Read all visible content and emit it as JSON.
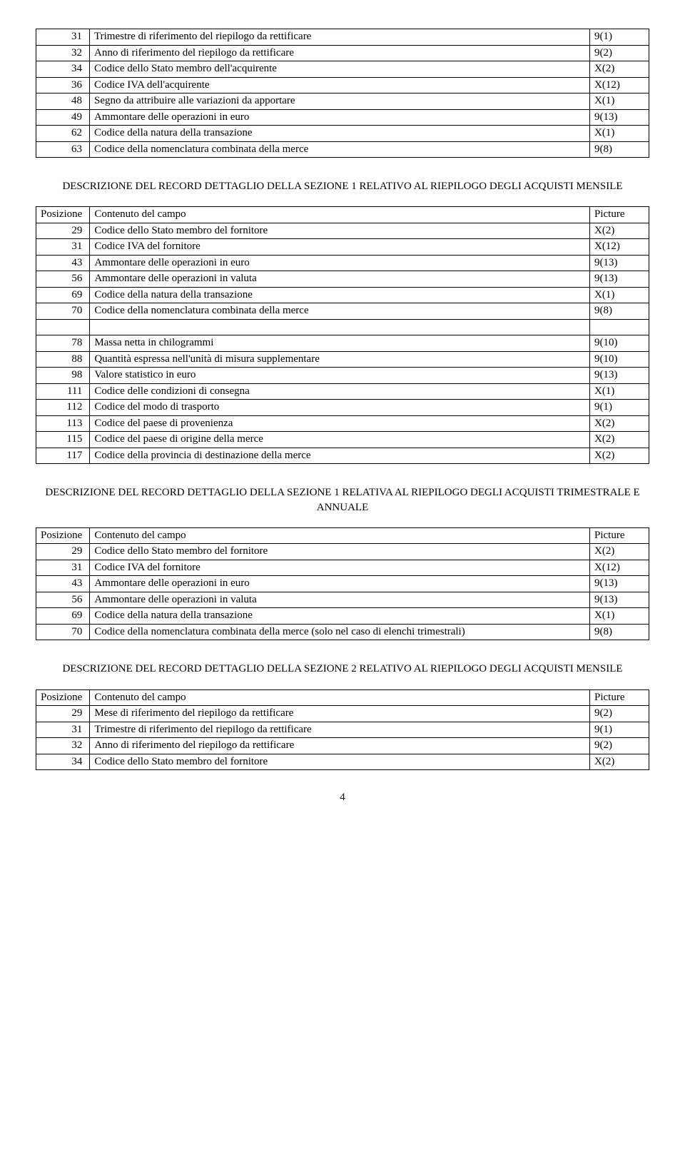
{
  "header_labels": {
    "pos": "Posizione",
    "desc": "Contenuto del campo",
    "pic": "Picture"
  },
  "table1_rows": [
    {
      "pos": "31",
      "desc": "Trimestre di riferimento del riepilogo da rettificare",
      "pic": "9(1)"
    },
    {
      "pos": "32",
      "desc": "Anno di riferimento del riepilogo da rettificare",
      "pic": "9(2)"
    },
    {
      "pos": "34",
      "desc": "Codice dello Stato membro dell'acquirente",
      "pic": "X(2)"
    },
    {
      "pos": "36",
      "desc": "Codice IVA dell'acquirente",
      "pic": "X(12)"
    },
    {
      "pos": "48",
      "desc": "Segno da attribuire alle variazioni da apportare",
      "pic": "X(1)"
    },
    {
      "pos": "49",
      "desc": "Ammontare delle operazioni in euro",
      "pic": "9(13)"
    },
    {
      "pos": "62",
      "desc": "Codice della natura della transazione",
      "pic": "X(1)"
    },
    {
      "pos": "63",
      "desc": "Codice della nomenclatura combinata della merce",
      "pic": "9(8)"
    }
  ],
  "title2": "DESCRIZIONE DEL RECORD DETTAGLIO DELLA SEZIONE 1 RELATIVO AL RIEPILOGO DEGLI ACQUISTI MENSILE",
  "table2_rows": [
    {
      "pos": "29",
      "desc": "Codice dello Stato membro del fornitore",
      "pic": "X(2)"
    },
    {
      "pos": "31",
      "desc": "Codice IVA del fornitore",
      "pic": "X(12)"
    },
    {
      "pos": "43",
      "desc": "Ammontare delle operazioni in euro",
      "pic": "9(13)"
    },
    {
      "pos": "56",
      "desc": "Ammontare delle operazioni in valuta",
      "pic": "9(13)"
    },
    {
      "pos": "69",
      "desc": "Codice della natura della transazione",
      "pic": "X(1)"
    },
    {
      "pos": "70",
      "desc": "Codice della nomenclatura combinata della merce",
      "pic": "9(8)"
    },
    {
      "pos": "",
      "desc": "",
      "pic": ""
    },
    {
      "pos": "78",
      "desc": "Massa netta in chilogrammi",
      "pic": "9(10)"
    },
    {
      "pos": "88",
      "desc": "Quantità espressa nell'unità di misura supplementare",
      "pic": "9(10)"
    },
    {
      "pos": "98",
      "desc": "Valore statistico in euro",
      "pic": "9(13)"
    },
    {
      "pos": "111",
      "desc": "Codice delle condizioni di consegna",
      "pic": "X(1)"
    },
    {
      "pos": "112",
      "desc": "Codice del modo di trasporto",
      "pic": "9(1)"
    },
    {
      "pos": "113",
      "desc": "Codice del paese di provenienza",
      "pic": "X(2)"
    },
    {
      "pos": "115",
      "desc": "Codice del paese di origine della merce",
      "pic": "X(2)"
    },
    {
      "pos": "117",
      "desc": "Codice della provincia di destinazione della merce",
      "pic": "X(2)"
    }
  ],
  "title3": "DESCRIZIONE DEL RECORD DETTAGLIO DELLA SEZIONE 1 RELATIVA AL RIEPILOGO DEGLI ACQUISTI TRIMESTRALE E ANNUALE",
  "table3_rows": [
    {
      "pos": "29",
      "desc": "Codice dello Stato membro del fornitore",
      "pic": "X(2)"
    },
    {
      "pos": "31",
      "desc": "Codice IVA del fornitore",
      "pic": "X(12)"
    },
    {
      "pos": "43",
      "desc": "Ammontare delle operazioni in euro",
      "pic": "9(13)"
    },
    {
      "pos": "56",
      "desc": "Ammontare delle operazioni in valuta",
      "pic": "9(13)"
    },
    {
      "pos": "69",
      "desc": "Codice della natura della transazione",
      "pic": "X(1)"
    },
    {
      "pos": "70",
      "desc": "Codice della nomenclatura combinata della merce (solo nel caso di elenchi trimestrali)",
      "pic": "9(8)"
    }
  ],
  "title4": "DESCRIZIONE DEL RECORD DETTAGLIO DELLA SEZIONE 2 RELATIVO AL RIEPILOGO DEGLI ACQUISTI MENSILE",
  "table4_rows": [
    {
      "pos": "29",
      "desc": "Mese di riferimento del riepilogo da rettificare",
      "pic": "9(2)"
    },
    {
      "pos": "31",
      "desc": "Trimestre di riferimento del riepilogo da rettificare",
      "pic": "9(1)"
    },
    {
      "pos": "32",
      "desc": "Anno di riferimento del riepilogo da rettificare",
      "pic": "9(2)"
    },
    {
      "pos": "34",
      "desc": "Codice dello Stato membro del fornitore",
      "pic": "X(2)"
    }
  ],
  "page_number": "4"
}
